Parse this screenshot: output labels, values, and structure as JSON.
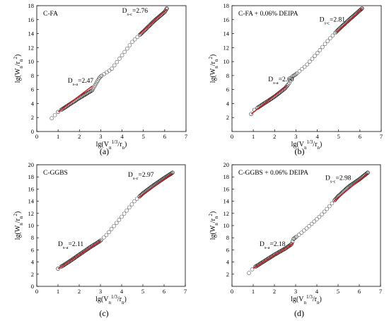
{
  "chart_data": [
    {
      "panel": "(a)",
      "type": "scatter",
      "legend": "C-FA",
      "xlabel": "lg(V_n^{1/3}/r_n)",
      "ylabel": "lg(W_n/r_n^2)",
      "xlim": [
        0,
        7
      ],
      "ylim": [
        0,
        18
      ],
      "xticks": [
        0,
        1,
        2,
        3,
        4,
        5,
        6,
        7
      ],
      "yticks": [
        0,
        2,
        4,
        6,
        8,
        10,
        12,
        14,
        16,
        18
      ],
      "annotations": [
        {
          "name": "D",
          "sub": "s-a",
          "value": "=2.47",
          "x": 1.45,
          "y": 7.0
        },
        {
          "name": "D",
          "sub": "s-c",
          "value": "=2.76",
          "x": 4.0,
          "y": 17.0
        }
      ],
      "curve": [
        [
          0.7,
          1.9
        ],
        [
          1.0,
          2.8
        ],
        [
          1.5,
          3.8
        ],
        [
          2.0,
          4.8
        ],
        [
          2.6,
          5.9
        ],
        [
          2.9,
          7.5
        ],
        [
          3.0,
          7.9
        ],
        [
          3.5,
          8.9
        ],
        [
          4.0,
          10.9
        ],
        [
          4.5,
          12.9
        ],
        [
          5.0,
          14.3
        ],
        [
          5.5,
          15.8
        ],
        [
          6.0,
          17.1
        ],
        [
          6.1,
          17.6
        ]
      ],
      "fit_lines": [
        {
          "x": [
            1.0,
            2.6
          ],
          "y": [
            2.8,
            6.5
          ]
        },
        {
          "x": [
            4.8,
            6.1
          ],
          "y": [
            13.9,
            17.5
          ]
        }
      ]
    },
    {
      "panel": "(b)",
      "type": "scatter",
      "legend": "C-FA + 0.06% DEIPA",
      "xlabel": "lg(V_n^{1/3}/r_n)",
      "ylabel": "lg(W_n/r_n^2)",
      "xlim": [
        0,
        7
      ],
      "ylim": [
        0,
        18
      ],
      "xticks": [
        0,
        1,
        2,
        3,
        4,
        5,
        6,
        7
      ],
      "yticks": [
        2,
        4,
        6,
        8,
        10,
        12,
        14,
        16,
        18
      ],
      "annotations": [
        {
          "name": "D",
          "sub": "s-a",
          "value": "=2.60",
          "x": 1.7,
          "y": 7.2
        },
        {
          "name": "D",
          "sub": "s-c",
          "value": "=2.81",
          "x": 4.1,
          "y": 15.7
        }
      ],
      "curve": [
        [
          0.9,
          2.5
        ],
        [
          1.0,
          3.0
        ],
        [
          1.5,
          4.0
        ],
        [
          2.0,
          5.0
        ],
        [
          2.5,
          6.2
        ],
        [
          2.7,
          7.0
        ],
        [
          2.8,
          7.8
        ],
        [
          3.0,
          8.2
        ],
        [
          3.5,
          9.5
        ],
        [
          4.0,
          11.2
        ],
        [
          4.5,
          13.0
        ],
        [
          5.0,
          14.6
        ],
        [
          5.5,
          16.0
        ],
        [
          6.1,
          17.6
        ]
      ],
      "fit_lines": [
        {
          "x": [
            0.9,
            2.6
          ],
          "y": [
            2.5,
            6.6
          ]
        },
        {
          "x": [
            4.9,
            6.1
          ],
          "y": [
            14.2,
            17.6
          ]
        }
      ]
    },
    {
      "panel": "(c)",
      "type": "scatter",
      "legend": "C-GGBS",
      "xlabel": "lg(V_n^{1/3}/r_n)",
      "ylabel": "lg(W_n/r_n^2)",
      "xlim": [
        0,
        7
      ],
      "ylim": [
        0,
        20
      ],
      "xticks": [
        0,
        1,
        2,
        3,
        4,
        5,
        6,
        7
      ],
      "yticks": [
        0,
        2,
        4,
        6,
        8,
        10,
        12,
        14,
        16,
        18,
        20
      ],
      "annotations": [
        {
          "name": "D",
          "sub": "s-a",
          "value": "=2.11",
          "x": 1.0,
          "y": 6.6
        },
        {
          "name": "D",
          "sub": "s-c",
          "value": "=2.97",
          "x": 4.3,
          "y": 18.0
        }
      ],
      "curve": [
        [
          1.0,
          2.9
        ],
        [
          1.5,
          4.0
        ],
        [
          2.0,
          5.2
        ],
        [
          2.5,
          6.4
        ],
        [
          3.0,
          7.5
        ],
        [
          3.3,
          8.5
        ],
        [
          3.8,
          10.6
        ],
        [
          4.2,
          12.3
        ],
        [
          4.6,
          14.0
        ],
        [
          5.0,
          15.3
        ],
        [
          5.5,
          16.6
        ],
        [
          6.0,
          17.8
        ],
        [
          6.4,
          18.7
        ]
      ],
      "fit_lines": [
        {
          "x": [
            1.0,
            3.0
          ],
          "y": [
            2.9,
            7.5
          ]
        },
        {
          "x": [
            4.8,
            6.4
          ],
          "y": [
            14.6,
            18.6
          ]
        }
      ]
    },
    {
      "panel": "(d)",
      "type": "scatter",
      "legend": "C-GGBS + 0.06% DEIPA",
      "xlabel": "lg(V_n^{1/3}/r_n)",
      "ylabel": "lg(W_n/r_n^2)",
      "xlim": [
        0,
        7
      ],
      "ylim": [
        0,
        20
      ],
      "xticks": [
        0,
        1,
        2,
        3,
        4,
        5,
        6,
        7
      ],
      "yticks": [
        2,
        4,
        6,
        8,
        10,
        12,
        14,
        16,
        18,
        20
      ],
      "annotations": [
        {
          "name": "D",
          "sub": "s-a",
          "value": "=2.18",
          "x": 1.3,
          "y": 6.6
        },
        {
          "name": "D",
          "sub": "s-c",
          "value": "=2.98",
          "x": 4.4,
          "y": 17.5
        }
      ],
      "curve": [
        [
          0.8,
          2.2
        ],
        [
          1.0,
          3.0
        ],
        [
          1.5,
          4.1
        ],
        [
          2.0,
          5.2
        ],
        [
          2.5,
          6.2
        ],
        [
          2.8,
          6.9
        ],
        [
          2.9,
          7.8
        ],
        [
          3.2,
          8.6
        ],
        [
          3.7,
          10.1
        ],
        [
          4.2,
          11.7
        ],
        [
          4.6,
          13.2
        ],
        [
          5.0,
          14.8
        ],
        [
          5.5,
          16.4
        ],
        [
          6.0,
          17.6
        ],
        [
          6.4,
          18.7
        ]
      ],
      "fit_lines": [
        {
          "x": [
            1.0,
            2.9
          ],
          "y": [
            3.0,
            7.1
          ]
        },
        {
          "x": [
            4.8,
            6.4
          ],
          "y": [
            14.0,
            18.6
          ]
        }
      ]
    }
  ]
}
